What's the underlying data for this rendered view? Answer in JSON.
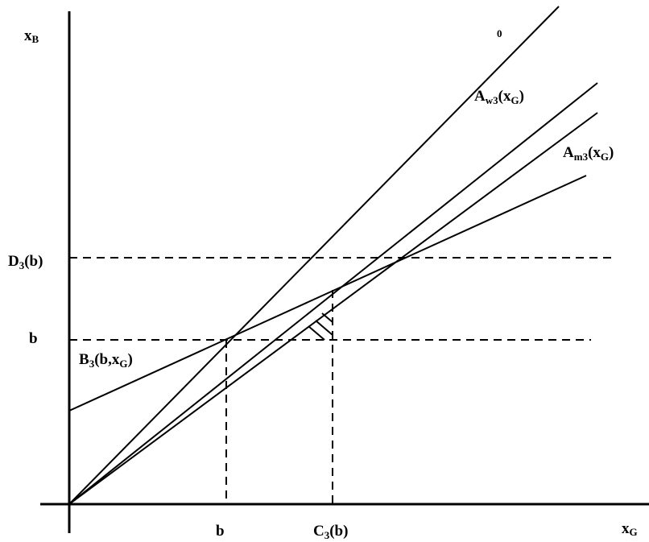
{
  "axes": {
    "y_label_main": "x",
    "y_label_sub": "B",
    "x_label_main": "x",
    "x_label_sub": "G"
  },
  "curve_labels": {
    "zero_mark": "0",
    "a_w3_main": "A",
    "a_w3_sub": "w3",
    "a_w3_arg_main": "(x",
    "a_w3_arg_sub": "G",
    "a_w3_close": ")",
    "a_m3_main": "A",
    "a_m3_sub": "m3",
    "a_m3_arg_main": "(x",
    "a_m3_arg_sub": "G",
    "a_m3_close": ")",
    "b3_main": "B",
    "b3_sub": "3",
    "b3_arg_main": "(b,x",
    "b3_arg_sub": "G",
    "b3_close": ")"
  },
  "level_labels": {
    "d3_main": "D",
    "d3_sub": "3",
    "d3_arg": "(b)",
    "b_y": "b"
  },
  "x_ticks": {
    "b_x": "b",
    "c3_main": "C",
    "c3_sub": "3",
    "c3_arg": "(b)"
  }
}
